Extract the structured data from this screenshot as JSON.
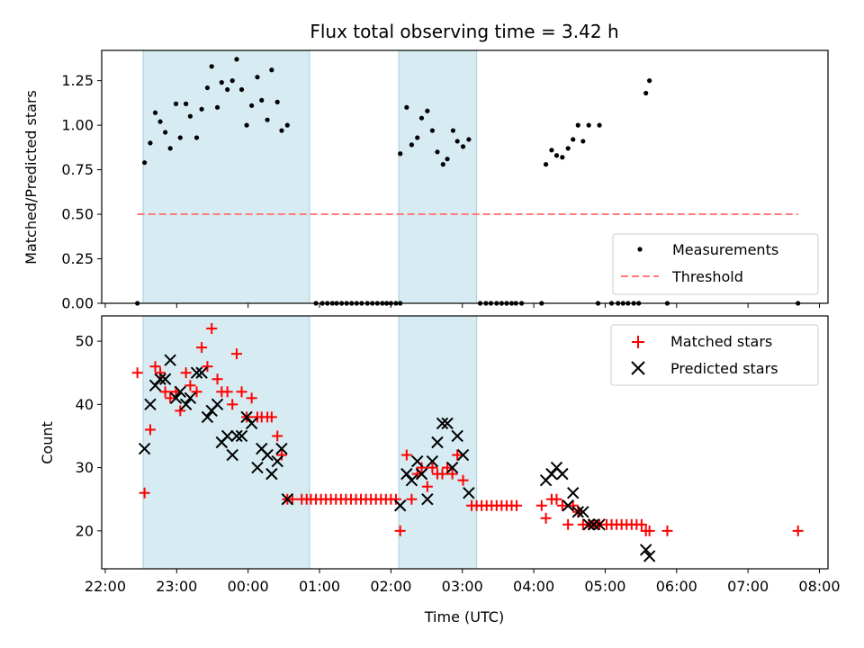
{
  "chart_data": [
    {
      "type": "scatter",
      "title": "Flux total observing time = 3.42 h",
      "ylabel": "Matched/Predicted stars",
      "xlabel": "",
      "x_unit": "hours since 22:00 UTC",
      "xlim": [
        -0.05,
        10.12
      ],
      "ylim": [
        0,
        1.42
      ],
      "yticks": [
        "0.00",
        "0.25",
        "0.50",
        "0.75",
        "1.00",
        "1.25"
      ],
      "shaded_intervals": [
        [
          0.53,
          2.86
        ],
        [
          4.11,
          5.2
        ]
      ],
      "threshold": {
        "name": "Threshold",
        "y": 0.5,
        "x_range": [
          0.45,
          9.7
        ]
      },
      "legend": [
        "Measurements",
        "Threshold"
      ],
      "legend_position": "lower right",
      "series": [
        {
          "name": "Measurements",
          "points": [
            [
              0.45,
              0.0
            ],
            [
              0.55,
              0.79
            ],
            [
              0.63,
              0.9
            ],
            [
              0.7,
              1.07
            ],
            [
              0.77,
              1.02
            ],
            [
              0.84,
              0.96
            ],
            [
              0.91,
              0.87
            ],
            [
              0.99,
              1.12
            ],
            [
              1.05,
              0.93
            ],
            [
              1.13,
              1.12
            ],
            [
              1.19,
              1.05
            ],
            [
              1.28,
              0.93
            ],
            [
              1.35,
              1.09
            ],
            [
              1.43,
              1.21
            ],
            [
              1.49,
              1.33
            ],
            [
              1.57,
              1.1
            ],
            [
              1.63,
              1.24
            ],
            [
              1.71,
              1.2
            ],
            [
              1.78,
              1.25
            ],
            [
              1.84,
              1.37
            ],
            [
              1.91,
              1.2
            ],
            [
              1.98,
              1.0
            ],
            [
              2.05,
              1.11
            ],
            [
              2.13,
              1.27
            ],
            [
              2.19,
              1.14
            ],
            [
              2.27,
              1.03
            ],
            [
              2.33,
              1.31
            ],
            [
              2.41,
              1.13
            ],
            [
              2.47,
              0.97
            ],
            [
              2.55,
              1.0
            ],
            [
              2.95,
              0.0
            ],
            [
              3.04,
              0.0
            ],
            [
              3.11,
              0.0
            ],
            [
              3.18,
              0.0
            ],
            [
              3.24,
              0.0
            ],
            [
              3.31,
              0.0
            ],
            [
              3.38,
              0.0
            ],
            [
              3.45,
              0.0
            ],
            [
              3.52,
              0.0
            ],
            [
              3.59,
              0.0
            ],
            [
              3.67,
              0.0
            ],
            [
              3.74,
              0.0
            ],
            [
              3.81,
              0.0
            ],
            [
              3.88,
              0.0
            ],
            [
              3.94,
              0.0
            ],
            [
              4.0,
              0.0
            ],
            [
              4.07,
              0.0
            ],
            [
              4.13,
              0.0
            ],
            [
              4.13,
              0.84
            ],
            [
              4.22,
              1.1
            ],
            [
              4.29,
              0.89
            ],
            [
              4.37,
              0.93
            ],
            [
              4.43,
              1.04
            ],
            [
              4.51,
              1.08
            ],
            [
              4.58,
              0.97
            ],
            [
              4.65,
              0.85
            ],
            [
              4.73,
              0.78
            ],
            [
              4.79,
              0.81
            ],
            [
              4.87,
              0.97
            ],
            [
              4.93,
              0.91
            ],
            [
              5.01,
              0.88
            ],
            [
              5.09,
              0.92
            ],
            [
              5.25,
              0.0
            ],
            [
              5.33,
              0.0
            ],
            [
              5.4,
              0.0
            ],
            [
              5.48,
              0.0
            ],
            [
              5.55,
              0.0
            ],
            [
              5.62,
              0.0
            ],
            [
              5.69,
              0.0
            ],
            [
              5.75,
              0.0
            ],
            [
              5.83,
              0.0
            ],
            [
              6.11,
              0.0
            ],
            [
              6.17,
              0.78
            ],
            [
              6.25,
              0.86
            ],
            [
              6.32,
              0.83
            ],
            [
              6.4,
              0.82
            ],
            [
              6.48,
              0.87
            ],
            [
              6.55,
              0.92
            ],
            [
              6.62,
              1.0
            ],
            [
              6.69,
              0.91
            ],
            [
              6.77,
              1.0
            ],
            [
              6.92,
              1.0
            ],
            [
              6.9,
              0.0
            ],
            [
              7.09,
              0.0
            ],
            [
              7.18,
              0.0
            ],
            [
              7.25,
              0.0
            ],
            [
              7.32,
              0.0
            ],
            [
              7.4,
              0.0
            ],
            [
              7.47,
              0.0
            ],
            [
              7.57,
              1.18
            ],
            [
              7.62,
              1.25
            ],
            [
              7.87,
              0.0
            ],
            [
              9.7,
              0.0
            ]
          ]
        }
      ]
    },
    {
      "type": "scatter",
      "title": "",
      "xlabel": "Time (UTC)",
      "ylabel": "Count",
      "x_unit": "hours since 22:00 UTC",
      "xlim": [
        -0.05,
        10.12
      ],
      "ylim": [
        14,
        54
      ],
      "yticks": [
        "20",
        "30",
        "40",
        "50"
      ],
      "xticks": [
        "22:00",
        "23:00",
        "00:00",
        "01:00",
        "02:00",
        "03:00",
        "04:00",
        "05:00",
        "06:00",
        "07:00",
        "08:00"
      ],
      "shaded_intervals": [
        [
          0.53,
          2.86
        ],
        [
          4.11,
          5.2
        ]
      ],
      "legend": [
        "Matched stars",
        "Predicted stars"
      ],
      "legend_position": "upper right",
      "series": [
        {
          "name": "Matched stars",
          "color": "#ff0000",
          "marker": "+",
          "points": [
            [
              0.45,
              45
            ],
            [
              0.55,
              26
            ],
            [
              0.63,
              36
            ],
            [
              0.7,
              46
            ],
            [
              0.77,
              45
            ],
            [
              0.84,
              42
            ],
            [
              0.91,
              41
            ],
            [
              0.99,
              42
            ],
            [
              1.05,
              39
            ],
            [
              1.13,
              45
            ],
            [
              1.19,
              43
            ],
            [
              1.28,
              42
            ],
            [
              1.35,
              49
            ],
            [
              1.43,
              46
            ],
            [
              1.49,
              52
            ],
            [
              1.57,
              44
            ],
            [
              1.63,
              42
            ],
            [
              1.71,
              42
            ],
            [
              1.78,
              40
            ],
            [
              1.84,
              48
            ],
            [
              1.91,
              42
            ],
            [
              1.98,
              38
            ],
            [
              2.05,
              41
            ],
            [
              2.13,
              38
            ],
            [
              2.19,
              38
            ],
            [
              2.27,
              38
            ],
            [
              2.33,
              38
            ],
            [
              2.41,
              35
            ],
            [
              2.47,
              32
            ],
            [
              2.55,
              25
            ],
            [
              2.62,
              25
            ],
            [
              2.75,
              25
            ],
            [
              2.82,
              25
            ],
            [
              2.88,
              25
            ],
            [
              2.95,
              25
            ],
            [
              3.02,
              25
            ],
            [
              3.09,
              25
            ],
            [
              3.16,
              25
            ],
            [
              3.23,
              25
            ],
            [
              3.3,
              25
            ],
            [
              3.37,
              25
            ],
            [
              3.44,
              25
            ],
            [
              3.51,
              25
            ],
            [
              3.58,
              25
            ],
            [
              3.65,
              25
            ],
            [
              3.72,
              25
            ],
            [
              3.79,
              25
            ],
            [
              3.86,
              25
            ],
            [
              3.93,
              25
            ],
            [
              4.0,
              25
            ],
            [
              4.07,
              25
            ],
            [
              4.13,
              20
            ],
            [
              4.22,
              32
            ],
            [
              4.29,
              25
            ],
            [
              4.37,
              29
            ],
            [
              4.43,
              30
            ],
            [
              4.51,
              27
            ],
            [
              4.58,
              30
            ],
            [
              4.65,
              29
            ],
            [
              4.72,
              29
            ],
            [
              4.79,
              30
            ],
            [
              4.86,
              29
            ],
            [
              4.93,
              32
            ],
            [
              5.01,
              28
            ],
            [
              5.13,
              24
            ],
            [
              5.2,
              24
            ],
            [
              5.27,
              24
            ],
            [
              5.34,
              24
            ],
            [
              5.41,
              24
            ],
            [
              5.48,
              24
            ],
            [
              5.55,
              24
            ],
            [
              5.62,
              24
            ],
            [
              5.69,
              24
            ],
            [
              5.76,
              24
            ],
            [
              6.11,
              24
            ],
            [
              6.17,
              22
            ],
            [
              6.25,
              25
            ],
            [
              6.32,
              25
            ],
            [
              6.4,
              24
            ],
            [
              6.48,
              21
            ],
            [
              6.55,
              24
            ],
            [
              6.62,
              23
            ],
            [
              6.69,
              21
            ],
            [
              6.77,
              21
            ],
            [
              6.84,
              21
            ],
            [
              6.92,
              21
            ],
            [
              7.02,
              21
            ],
            [
              7.09,
              21
            ],
            [
              7.16,
              21
            ],
            [
              7.23,
              21
            ],
            [
              7.3,
              21
            ],
            [
              7.37,
              21
            ],
            [
              7.44,
              21
            ],
            [
              7.51,
              21
            ],
            [
              7.57,
              20
            ],
            [
              7.62,
              20
            ],
            [
              7.87,
              20
            ],
            [
              9.7,
              20
            ]
          ]
        },
        {
          "name": "Predicted stars",
          "color": "#000000",
          "marker": "x",
          "points": [
            [
              0.55,
              33
            ],
            [
              0.63,
              40
            ],
            [
              0.7,
              43
            ],
            [
              0.77,
              44
            ],
            [
              0.84,
              44
            ],
            [
              0.91,
              47
            ],
            [
              0.99,
              41
            ],
            [
              1.05,
              42
            ],
            [
              1.13,
              40
            ],
            [
              1.19,
              41
            ],
            [
              1.28,
              45
            ],
            [
              1.35,
              45
            ],
            [
              1.43,
              38
            ],
            [
              1.49,
              39
            ],
            [
              1.57,
              40
            ],
            [
              1.63,
              34
            ],
            [
              1.71,
              35
            ],
            [
              1.78,
              32
            ],
            [
              1.84,
              35
            ],
            [
              1.91,
              35
            ],
            [
              1.98,
              38
            ],
            [
              2.05,
              37
            ],
            [
              2.13,
              30
            ],
            [
              2.19,
              33
            ],
            [
              2.27,
              32
            ],
            [
              2.33,
              29
            ],
            [
              2.41,
              31
            ],
            [
              2.47,
              33
            ],
            [
              2.55,
              25
            ],
            [
              4.13,
              24
            ],
            [
              4.22,
              29
            ],
            [
              4.29,
              28
            ],
            [
              4.37,
              31
            ],
            [
              4.43,
              29
            ],
            [
              4.51,
              25
            ],
            [
              4.58,
              31
            ],
            [
              4.65,
              34
            ],
            [
              4.72,
              37
            ],
            [
              4.79,
              37
            ],
            [
              4.86,
              30
            ],
            [
              4.93,
              35
            ],
            [
              5.01,
              32
            ],
            [
              5.09,
              26
            ],
            [
              6.17,
              28
            ],
            [
              6.25,
              29
            ],
            [
              6.32,
              30
            ],
            [
              6.4,
              29
            ],
            [
              6.48,
              24
            ],
            [
              6.55,
              26
            ],
            [
              6.62,
              23
            ],
            [
              6.69,
              23
            ],
            [
              6.77,
              21
            ],
            [
              6.84,
              21
            ],
            [
              6.92,
              21
            ],
            [
              7.57,
              17
            ],
            [
              7.62,
              16
            ]
          ]
        }
      ]
    }
  ]
}
